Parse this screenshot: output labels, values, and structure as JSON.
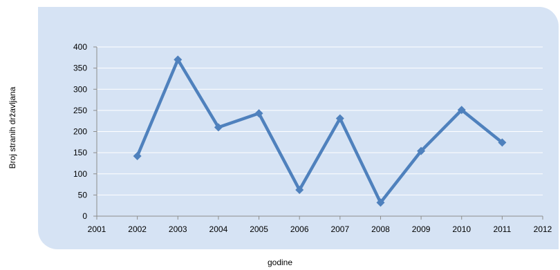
{
  "chart_data": {
    "type": "line",
    "title": "",
    "xlabel": "godine",
    "ylabel": "Broj stranih državljana",
    "x_ticks": [
      "2001",
      "2002",
      "2003",
      "2004",
      "2005",
      "2006",
      "2007",
      "2008",
      "2009",
      "2010",
      "2011",
      "2012"
    ],
    "y_ticks": [
      "0",
      "50",
      "100",
      "150",
      "200",
      "250",
      "300",
      "350",
      "400"
    ],
    "xlim": [
      2001,
      2012
    ],
    "ylim": [
      0,
      400
    ],
    "grid": true,
    "legend": "none",
    "series": [
      {
        "color": "#4f81bd",
        "x": [
          2002,
          2003,
          2004,
          2005,
          2006,
          2007,
          2008,
          2009,
          2010,
          2011
        ],
        "y": [
          142,
          370,
          210,
          243,
          62,
          231,
          32,
          154,
          251,
          174
        ]
      }
    ]
  },
  "colors": {
    "panel_background": "#d6e3f4",
    "gridline": "#ffffff",
    "line": "#4f81bd"
  }
}
